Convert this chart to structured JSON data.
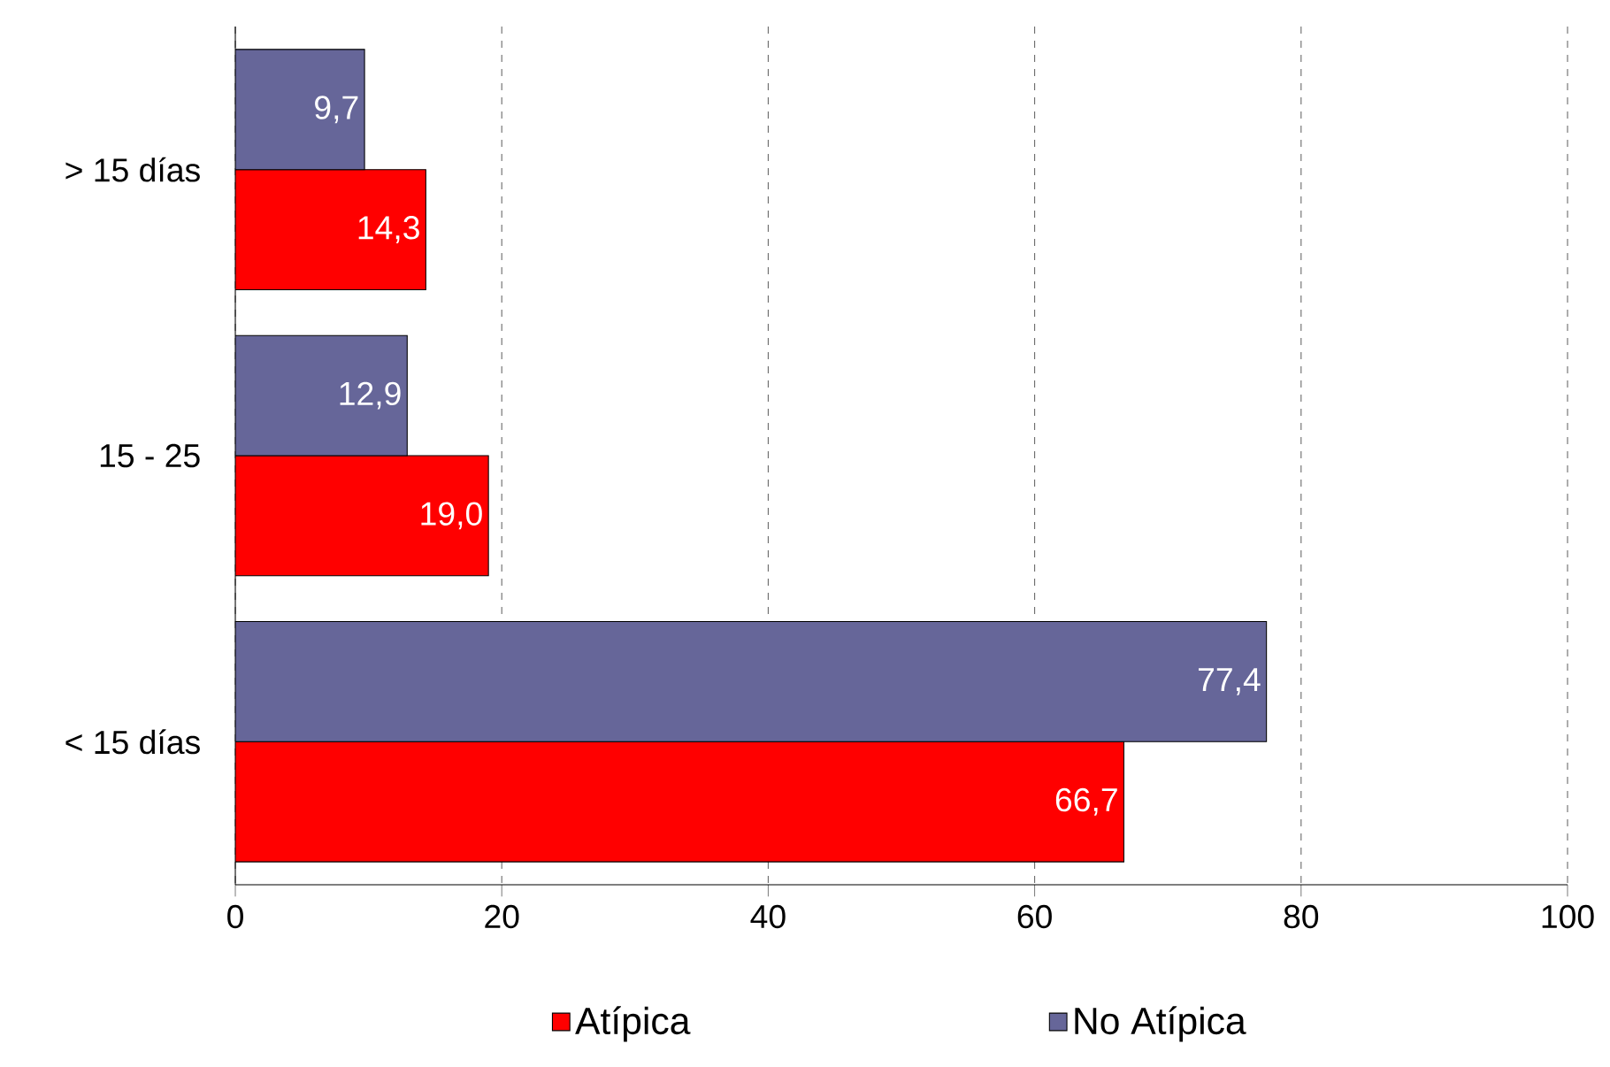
{
  "chart_data": {
    "type": "bar",
    "orientation": "horizontal",
    "categories": [
      "> 15 días",
      "15 - 25",
      "< 15 días"
    ],
    "series": [
      {
        "name": "Atípica",
        "color": "#ff0000",
        "values": [
          14.3,
          19.0,
          66.7
        ],
        "value_labels": [
          "14,3",
          "19,0",
          "66,7"
        ]
      },
      {
        "name": "No Atípica",
        "color": "#666699",
        "values": [
          9.7,
          12.9,
          77.4
        ],
        "value_labels": [
          "9,7",
          "12,9",
          "77,4"
        ]
      }
    ],
    "xlim": [
      0,
      100
    ],
    "xticks": [
      0,
      20,
      40,
      60,
      80,
      100
    ],
    "grid": "x",
    "legend": "bottom"
  }
}
